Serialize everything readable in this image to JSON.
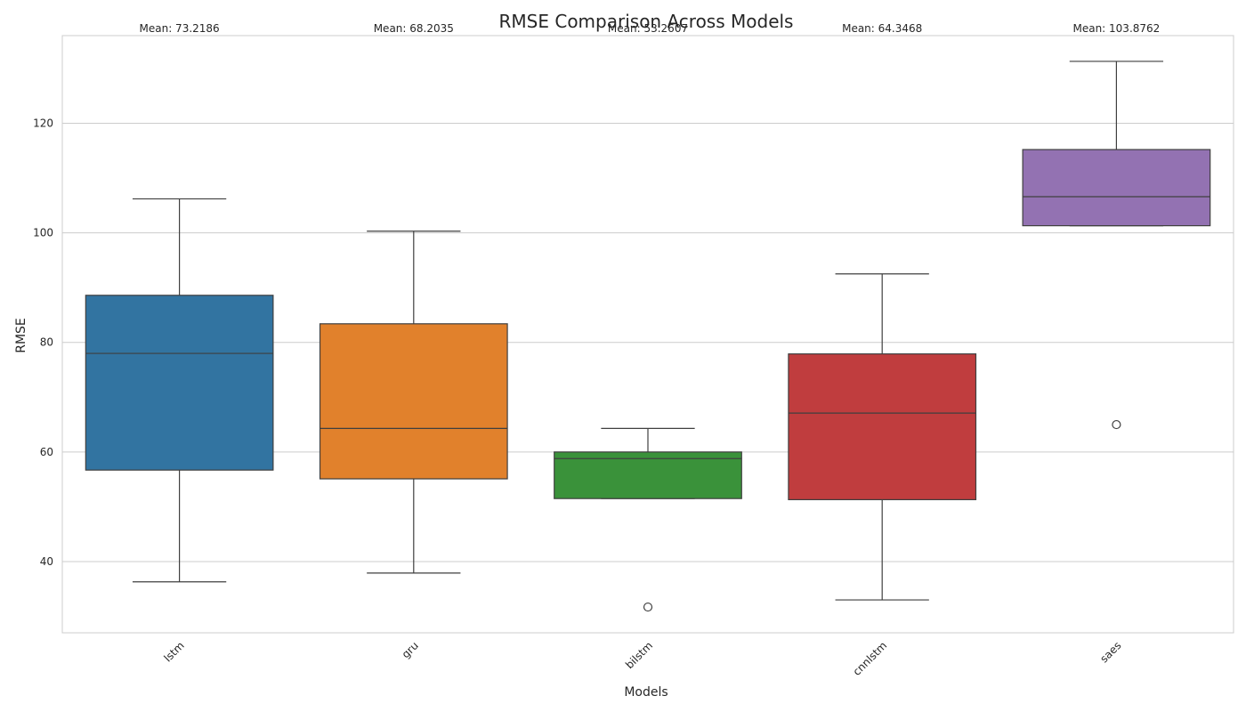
{
  "chart_data": {
    "type": "box",
    "title": "RMSE Comparison Across Models",
    "xlabel": "Models",
    "ylabel": "RMSE",
    "ylim": [
      27,
      136
    ],
    "yticks": [
      40,
      60,
      80,
      100,
      120
    ],
    "grid": true,
    "legend": "none",
    "categories": [
      "lstm",
      "gru",
      "bilstm",
      "cnnlstm",
      "saes"
    ],
    "boxes": [
      {
        "category": "lstm",
        "color": "#3274a1",
        "whisker_low": 36.3,
        "q1": 56.7,
        "median": 78.0,
        "q3": 88.6,
        "whisker_high": 106.2,
        "outliers": [],
        "mean_label": "Mean: 73.2186"
      },
      {
        "category": "gru",
        "color": "#e1812c",
        "whisker_low": 37.9,
        "q1": 55.1,
        "median": 64.3,
        "q3": 83.4,
        "whisker_high": 100.3,
        "outliers": [],
        "mean_label": "Mean: 68.2035"
      },
      {
        "category": "bilstm",
        "color": "#3a923a",
        "whisker_low": 51.5,
        "q1": 51.5,
        "median": 58.8,
        "q3": 60.0,
        "whisker_high": 64.3,
        "outliers": [
          31.7
        ],
        "mean_label": "Mean: 53.2607"
      },
      {
        "category": "cnnlstm",
        "color": "#c03d3e",
        "whisker_low": 33.0,
        "q1": 51.3,
        "median": 67.1,
        "q3": 77.9,
        "whisker_high": 92.5,
        "outliers": [],
        "mean_label": "Mean: 64.3468"
      },
      {
        "category": "saes",
        "color": "#9372b2",
        "whisker_low": 101.3,
        "q1": 101.3,
        "median": 106.6,
        "q3": 115.2,
        "whisker_high": 131.3,
        "outliers": [
          65.0
        ],
        "mean_label": "Mean: 103.8762"
      }
    ]
  }
}
